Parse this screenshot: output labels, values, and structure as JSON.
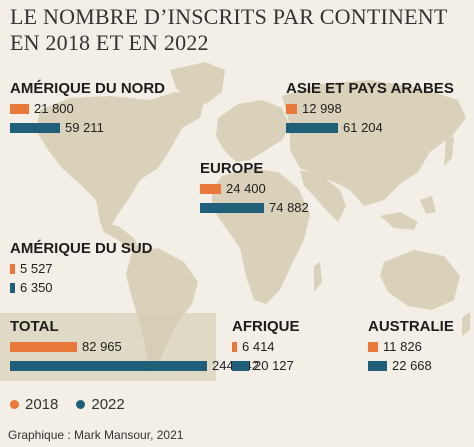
{
  "title": "LE NOMBRE D’INSCRITS PAR CONTINENT EN 2018 ET EN 2022",
  "colors": {
    "y2018": "#e8793a",
    "y2022": "#1f5f7a",
    "map": "#d9d1ba",
    "background": "#f3efe6"
  },
  "chart_data": {
    "type": "bar",
    "title": "LE NOMBRE D’INSCRITS PAR CONTINENT EN 2018 ET EN 2022",
    "categories": [
      "AMÉRIQUE DU NORD",
      "ASIE ET PAYS ARABES",
      "EUROPE",
      "AMÉRIQUE DU SUD",
      "TOTAL",
      "AFRIQUE",
      "AUSTRALIE"
    ],
    "series": [
      {
        "name": "2018",
        "values": [
          21800,
          12998,
          24400,
          5527,
          82965,
          6414,
          11826
        ]
      },
      {
        "name": "2022",
        "values": [
          59211,
          61204,
          74882,
          6350,
          244442,
          20127,
          22668
        ]
      }
    ],
    "labels": {
      "2018": [
        "21 800",
        "12 998",
        "24 400",
        "5 527",
        "82 965",
        "6 414",
        "11 826"
      ],
      "2022": [
        "59 211",
        "61 204",
        "74 882",
        "6 350",
        "244 442",
        "20 127",
        "22 668"
      ]
    }
  },
  "legend": {
    "y2018": "2018",
    "y2022": "2022"
  },
  "credit": "Graphique : Mark Mansour, 2021"
}
